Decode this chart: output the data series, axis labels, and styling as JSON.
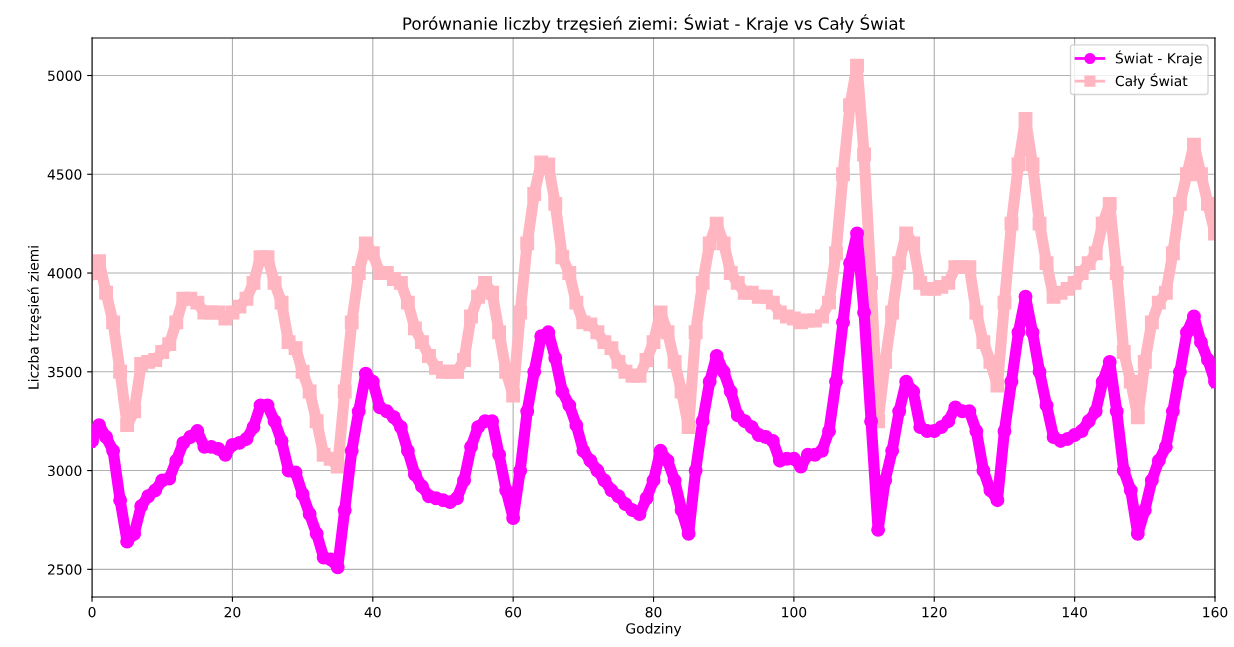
{
  "chart_data": {
    "type": "line",
    "title": "Porównanie liczby trzęsień ziemi: Świat - Kraje vs Cały Świat",
    "xlabel": "Godziny",
    "ylabel": "Liczba trzęsień ziemi",
    "x": [
      0,
      1,
      2,
      3,
      4,
      5,
      6,
      7,
      8,
      9,
      10,
      11,
      12,
      13,
      14,
      15,
      16,
      17,
      18,
      19,
      20,
      21,
      22,
      23,
      24,
      25,
      26,
      27,
      28,
      29,
      30,
      31,
      32,
      33,
      34,
      35,
      36,
      37,
      38,
      39,
      40,
      41,
      42,
      43,
      44,
      45,
      46,
      47,
      48,
      49,
      50,
      51,
      52,
      53,
      54,
      55,
      56,
      57,
      58,
      59,
      60,
      61,
      62,
      63,
      64,
      65,
      66,
      67,
      68,
      69,
      70,
      71,
      72,
      73,
      74,
      75,
      76,
      77,
      78,
      79,
      80,
      81,
      82,
      83,
      84,
      85,
      86,
      87,
      88,
      89,
      90,
      91,
      92,
      93,
      94,
      95,
      96,
      97,
      98,
      99,
      100,
      101,
      102,
      103,
      104,
      105,
      106,
      107,
      108,
      109,
      110,
      111,
      112,
      113,
      114,
      115,
      116,
      117,
      118,
      119,
      120,
      121,
      122,
      123,
      124,
      125,
      126,
      127,
      128,
      129,
      130,
      131,
      132,
      133,
      134,
      135,
      136,
      137,
      138,
      139,
      140,
      141,
      142,
      143,
      144,
      145,
      146,
      147,
      148,
      149,
      150,
      151,
      152,
      153,
      154,
      155,
      156,
      157,
      158,
      159,
      160
    ],
    "series": [
      {
        "name": "Świat - Kraje",
        "color": "#ff00ff",
        "marker": "circle",
        "values": [
          3150,
          3230,
          3170,
          3100,
          2850,
          2640,
          2680,
          2820,
          2870,
          2900,
          2950,
          2960,
          3050,
          3140,
          3170,
          3200,
          3120,
          3120,
          3110,
          3080,
          3130,
          3140,
          3160,
          3220,
          3330,
          3330,
          3250,
          3150,
          3000,
          2990,
          2880,
          2780,
          2680,
          2560,
          2550,
          2510,
          2800,
          3100,
          3300,
          3490,
          3450,
          3320,
          3300,
          3270,
          3220,
          3100,
          2980,
          2920,
          2870,
          2860,
          2850,
          2840,
          2860,
          2950,
          3120,
          3220,
          3250,
          3250,
          3080,
          2900,
          2760,
          3000,
          3300,
          3500,
          3680,
          3700,
          3570,
          3400,
          3330,
          3230,
          3100,
          3050,
          3000,
          2950,
          2900,
          2870,
          2830,
          2800,
          2780,
          2860,
          2950,
          3100,
          3050,
          2950,
          2800,
          2680,
          3000,
          3250,
          3450,
          3580,
          3500,
          3400,
          3280,
          3250,
          3220,
          3180,
          3170,
          3150,
          3050,
          3060,
          3060,
          3020,
          3080,
          3080,
          3100,
          3200,
          3450,
          3750,
          4050,
          4200,
          3800,
          3250,
          2700,
          2950,
          3100,
          3300,
          3450,
          3400,
          3220,
          3200,
          3200,
          3220,
          3250,
          3320,
          3300,
          3300,
          3200,
          3000,
          2900,
          2850,
          3200,
          3450,
          3700,
          3880,
          3700,
          3500,
          3330,
          3170,
          3150,
          3160,
          3180,
          3200,
          3250,
          3300,
          3450,
          3550,
          3300,
          3000,
          2900,
          2680,
          2800,
          2950,
          3050,
          3120,
          3300,
          3500,
          3700,
          3780,
          3650,
          3560,
          3450
        ]
      },
      {
        "name": "Cały Świat",
        "color": "#ffb6c1",
        "marker": "square",
        "values": [
          4000,
          4060,
          3900,
          3750,
          3500,
          3230,
          3300,
          3540,
          3550,
          3560,
          3600,
          3640,
          3750,
          3870,
          3870,
          3850,
          3800,
          3800,
          3800,
          3770,
          3800,
          3830,
          3870,
          3950,
          4080,
          4080,
          3950,
          3850,
          3650,
          3620,
          3500,
          3400,
          3250,
          3080,
          3060,
          3020,
          3400,
          3750,
          4000,
          4150,
          4100,
          4000,
          4000,
          3970,
          3950,
          3850,
          3720,
          3650,
          3580,
          3520,
          3500,
          3500,
          3500,
          3560,
          3780,
          3880,
          3950,
          3900,
          3700,
          3500,
          3380,
          3800,
          4150,
          4400,
          4560,
          4550,
          4350,
          4080,
          4000,
          3850,
          3750,
          3740,
          3700,
          3650,
          3620,
          3550,
          3500,
          3480,
          3480,
          3560,
          3650,
          3800,
          3700,
          3550,
          3400,
          3220,
          3700,
          3950,
          4150,
          4250,
          4150,
          4000,
          3950,
          3900,
          3900,
          3880,
          3880,
          3850,
          3800,
          3780,
          3770,
          3750,
          3760,
          3760,
          3780,
          3850,
          4100,
          4500,
          4850,
          5050,
          4600,
          3950,
          3250,
          3550,
          3800,
          4050,
          4200,
          4150,
          3950,
          3920,
          3920,
          3930,
          3950,
          4030,
          4030,
          4030,
          3800,
          3650,
          3550,
          3430,
          3850,
          4250,
          4550,
          4780,
          4550,
          4250,
          4050,
          3880,
          3900,
          3920,
          3950,
          4000,
          4050,
          4100,
          4250,
          4350,
          4000,
          3600,
          3450,
          3270,
          3550,
          3750,
          3850,
          3900,
          4100,
          4350,
          4500,
          4650,
          4500,
          4350,
          4200
        ]
      }
    ],
    "xlim": [
      0,
      160
    ],
    "xticks": [
      0,
      20,
      40,
      60,
      80,
      100,
      120,
      140,
      160
    ],
    "ylim": [
      2360,
      5190
    ],
    "yticks": [
      2500,
      3000,
      3500,
      4000,
      4500,
      5000
    ],
    "grid": true,
    "legend": "top right"
  }
}
